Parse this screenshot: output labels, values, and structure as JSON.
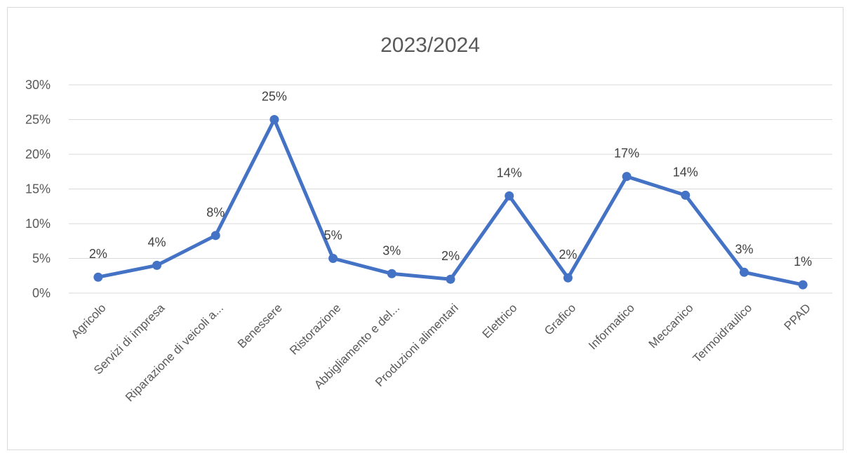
{
  "chart_data": {
    "type": "line",
    "title": "2023/2024",
    "categories": [
      "Agricolo",
      "Servizi di impresa",
      "Riparazione di veicoli a...",
      "Benessere",
      "Ristorazione",
      "Abbigliamento e del...",
      "Produzioni alimentari",
      "Elettrico",
      "Grafico",
      "Informatico",
      "Meccanico",
      "Termoidraulico",
      "PPAD"
    ],
    "values": [
      2.3,
      4.0,
      8.3,
      25.0,
      5.0,
      2.8,
      2.0,
      14.0,
      2.2,
      16.8,
      14.1,
      3.0,
      1.2
    ],
    "data_labels": [
      "2%",
      "4%",
      "8%",
      "25%",
      "5%",
      "3%",
      "2%",
      "14%",
      "2%",
      "17%",
      "14%",
      "3%",
      "1%"
    ],
    "ylim": [
      0,
      30
    ],
    "yticks": [
      0,
      5,
      10,
      15,
      20,
      25,
      30
    ],
    "ytick_labels": [
      "0%",
      "5%",
      "10%",
      "15%",
      "20%",
      "25%",
      "30%"
    ],
    "grid": true,
    "legend": "none",
    "line_color": "#4472c4"
  }
}
